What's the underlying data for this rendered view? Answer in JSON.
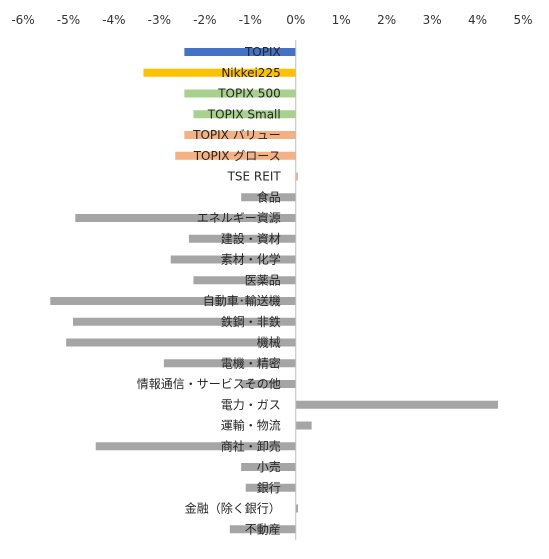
{
  "chart_data": {
    "type": "bar",
    "orientation": "horizontal",
    "title": "",
    "xlabel": "",
    "ylabel": "",
    "xlim": [
      -6,
      5
    ],
    "xticks": [
      -6,
      -5,
      -4,
      -3,
      -2,
      -1,
      0,
      1,
      2,
      3,
      4,
      5
    ],
    "xtick_labels": [
      "-6%",
      "-5%",
      "-4%",
      "-3%",
      "-2%",
      "-1%",
      "0%",
      "1%",
      "2%",
      "3%",
      "4%",
      "5%"
    ],
    "grid": false,
    "legend": "none",
    "categories": [
      "TOPIX",
      "Nikkei225",
      "TOPIX 500",
      "TOPIX Small",
      "TOPIX バリュー",
      "TOPIX グロース",
      "TSE REIT",
      "食品",
      "エネルギー資源",
      "建設・資材",
      "素材・化学",
      "医薬品",
      "自動車･輸送機",
      "鉄鋼・非鉄",
      "機械",
      "電機・精密",
      "情報通信・サービスその他",
      "電力・ガス",
      "運輸・物流",
      "商社・卸売",
      "小売",
      "銀行",
      "金融（除く銀行）",
      "不動産"
    ],
    "values": [
      -2.45,
      -3.35,
      -2.45,
      -2.25,
      -2.45,
      -2.65,
      0.05,
      -1.2,
      -4.85,
      -2.35,
      -2.75,
      -2.25,
      -5.4,
      -4.9,
      -5.05,
      -2.9,
      -1.2,
      4.45,
      0.35,
      -4.4,
      -1.2,
      -1.1,
      0.05,
      -1.45
    ],
    "colors": [
      "#4472c4",
      "#ffc000",
      "#a9d18e",
      "#a9d18e",
      "#f4b183",
      "#f4b183",
      "#f4b183",
      "#a5a5a5",
      "#a5a5a5",
      "#a5a5a5",
      "#a5a5a5",
      "#a5a5a5",
      "#a5a5a5",
      "#a5a5a5",
      "#a5a5a5",
      "#a5a5a5",
      "#a5a5a5",
      "#a5a5a5",
      "#a5a5a5",
      "#a5a5a5",
      "#a5a5a5",
      "#a5a5a5",
      "#a5a5a5",
      "#a5a5a5"
    ],
    "axis_color": "#bfbfbf"
  }
}
